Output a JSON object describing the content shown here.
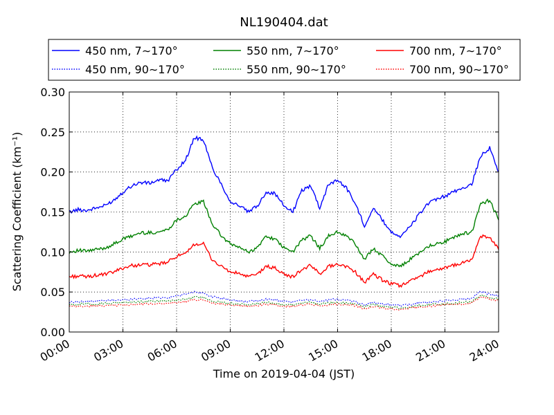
{
  "chart_data": {
    "type": "line",
    "title": "NL190404.dat",
    "xlabel": "Time on 2019-04-04 (JST)",
    "ylabel": "Scattering Coefficient (km⁻¹)",
    "xlim": [
      0,
      24
    ],
    "ylim": [
      0,
      0.3
    ],
    "x_tick_labels": [
      "00:00",
      "03:00",
      "06:00",
      "09:00",
      "12:00",
      "15:00",
      "18:00",
      "21:00",
      "24:00"
    ],
    "x_ticks": [
      0,
      3,
      6,
      9,
      12,
      15,
      18,
      21,
      24
    ],
    "y_ticks": [
      0.0,
      0.05,
      0.1,
      0.15,
      0.2,
      0.25,
      0.3
    ],
    "y_tick_labels": [
      "0.00",
      "0.05",
      "0.10",
      "0.15",
      "0.20",
      "0.25",
      "0.30"
    ],
    "grid": true,
    "legend_position": "top (above plot), 3 columns",
    "x": [
      0,
      0.5,
      1,
      1.5,
      2,
      2.5,
      3,
      3.5,
      4,
      4.5,
      5,
      5.5,
      6,
      6.5,
      7,
      7.5,
      8,
      8.5,
      9,
      9.5,
      10,
      10.5,
      11,
      11.5,
      12,
      12.5,
      13,
      13.5,
      14,
      14.5,
      15,
      15.5,
      16,
      16.5,
      17,
      17.5,
      18,
      18.5,
      19,
      19.5,
      20,
      20.5,
      21,
      21.5,
      22,
      22.5,
      23,
      23.5,
      24
    ],
    "series": [
      {
        "name": "450 nm, 7∼170°",
        "color": "#0000ff",
        "style": "solid",
        "values": [
          0.15,
          0.153,
          0.152,
          0.155,
          0.158,
          0.165,
          0.175,
          0.183,
          0.187,
          0.186,
          0.19,
          0.189,
          0.203,
          0.215,
          0.243,
          0.24,
          0.205,
          0.185,
          0.163,
          0.158,
          0.15,
          0.157,
          0.175,
          0.173,
          0.158,
          0.15,
          0.177,
          0.183,
          0.155,
          0.185,
          0.19,
          0.18,
          0.16,
          0.133,
          0.155,
          0.14,
          0.125,
          0.12,
          0.13,
          0.145,
          0.16,
          0.165,
          0.17,
          0.175,
          0.18,
          0.185,
          0.22,
          0.23,
          0.2
        ]
      },
      {
        "name": "550 nm, 7∼170°",
        "color": "#008000",
        "style": "solid",
        "values": [
          0.1,
          0.102,
          0.101,
          0.103,
          0.105,
          0.11,
          0.116,
          0.12,
          0.124,
          0.124,
          0.125,
          0.128,
          0.14,
          0.145,
          0.16,
          0.163,
          0.135,
          0.12,
          0.11,
          0.106,
          0.1,
          0.105,
          0.12,
          0.116,
          0.105,
          0.1,
          0.115,
          0.12,
          0.105,
          0.12,
          0.125,
          0.12,
          0.11,
          0.09,
          0.105,
          0.095,
          0.085,
          0.082,
          0.09,
          0.098,
          0.107,
          0.11,
          0.113,
          0.118,
          0.123,
          0.125,
          0.16,
          0.165,
          0.14
        ]
      },
      {
        "name": "700 nm, 7∼170°",
        "color": "#ff0000",
        "style": "solid",
        "values": [
          0.069,
          0.07,
          0.069,
          0.071,
          0.072,
          0.075,
          0.08,
          0.083,
          0.084,
          0.084,
          0.085,
          0.087,
          0.095,
          0.097,
          0.11,
          0.11,
          0.09,
          0.082,
          0.075,
          0.073,
          0.069,
          0.072,
          0.082,
          0.08,
          0.072,
          0.069,
          0.078,
          0.083,
          0.073,
          0.082,
          0.085,
          0.082,
          0.075,
          0.062,
          0.072,
          0.065,
          0.06,
          0.058,
          0.063,
          0.068,
          0.075,
          0.078,
          0.08,
          0.083,
          0.087,
          0.09,
          0.12,
          0.118,
          0.103
        ]
      },
      {
        "name": "450 nm, 90∼170°",
        "color": "#0000ff",
        "style": "dotted",
        "values": [
          0.037,
          0.038,
          0.038,
          0.039,
          0.039,
          0.04,
          0.04,
          0.041,
          0.042,
          0.042,
          0.043,
          0.043,
          0.045,
          0.047,
          0.05,
          0.049,
          0.044,
          0.042,
          0.04,
          0.039,
          0.038,
          0.039,
          0.041,
          0.04,
          0.038,
          0.037,
          0.04,
          0.041,
          0.038,
          0.04,
          0.041,
          0.04,
          0.038,
          0.034,
          0.037,
          0.035,
          0.034,
          0.033,
          0.034,
          0.036,
          0.037,
          0.038,
          0.039,
          0.04,
          0.041,
          0.042,
          0.051,
          0.047,
          0.045
        ]
      },
      {
        "name": "550 nm, 90∼170°",
        "color": "#008000",
        "style": "dotted",
        "values": [
          0.034,
          0.035,
          0.035,
          0.035,
          0.036,
          0.036,
          0.037,
          0.037,
          0.038,
          0.038,
          0.039,
          0.039,
          0.04,
          0.041,
          0.044,
          0.043,
          0.039,
          0.037,
          0.036,
          0.035,
          0.034,
          0.035,
          0.037,
          0.036,
          0.034,
          0.034,
          0.036,
          0.037,
          0.035,
          0.036,
          0.037,
          0.036,
          0.035,
          0.031,
          0.034,
          0.032,
          0.031,
          0.03,
          0.031,
          0.033,
          0.034,
          0.035,
          0.035,
          0.036,
          0.037,
          0.038,
          0.046,
          0.043,
          0.041
        ]
      },
      {
        "name": "700 nm, 90∼170°",
        "color": "#ff0000",
        "style": "dotted",
        "values": [
          0.032,
          0.032,
          0.032,
          0.033,
          0.033,
          0.033,
          0.034,
          0.034,
          0.035,
          0.035,
          0.036,
          0.036,
          0.037,
          0.038,
          0.04,
          0.04,
          0.036,
          0.035,
          0.034,
          0.033,
          0.032,
          0.033,
          0.035,
          0.034,
          0.032,
          0.032,
          0.034,
          0.035,
          0.033,
          0.034,
          0.035,
          0.034,
          0.033,
          0.029,
          0.032,
          0.03,
          0.029,
          0.028,
          0.03,
          0.031,
          0.032,
          0.033,
          0.034,
          0.035,
          0.035,
          0.036,
          0.044,
          0.041,
          0.039
        ]
      }
    ]
  }
}
